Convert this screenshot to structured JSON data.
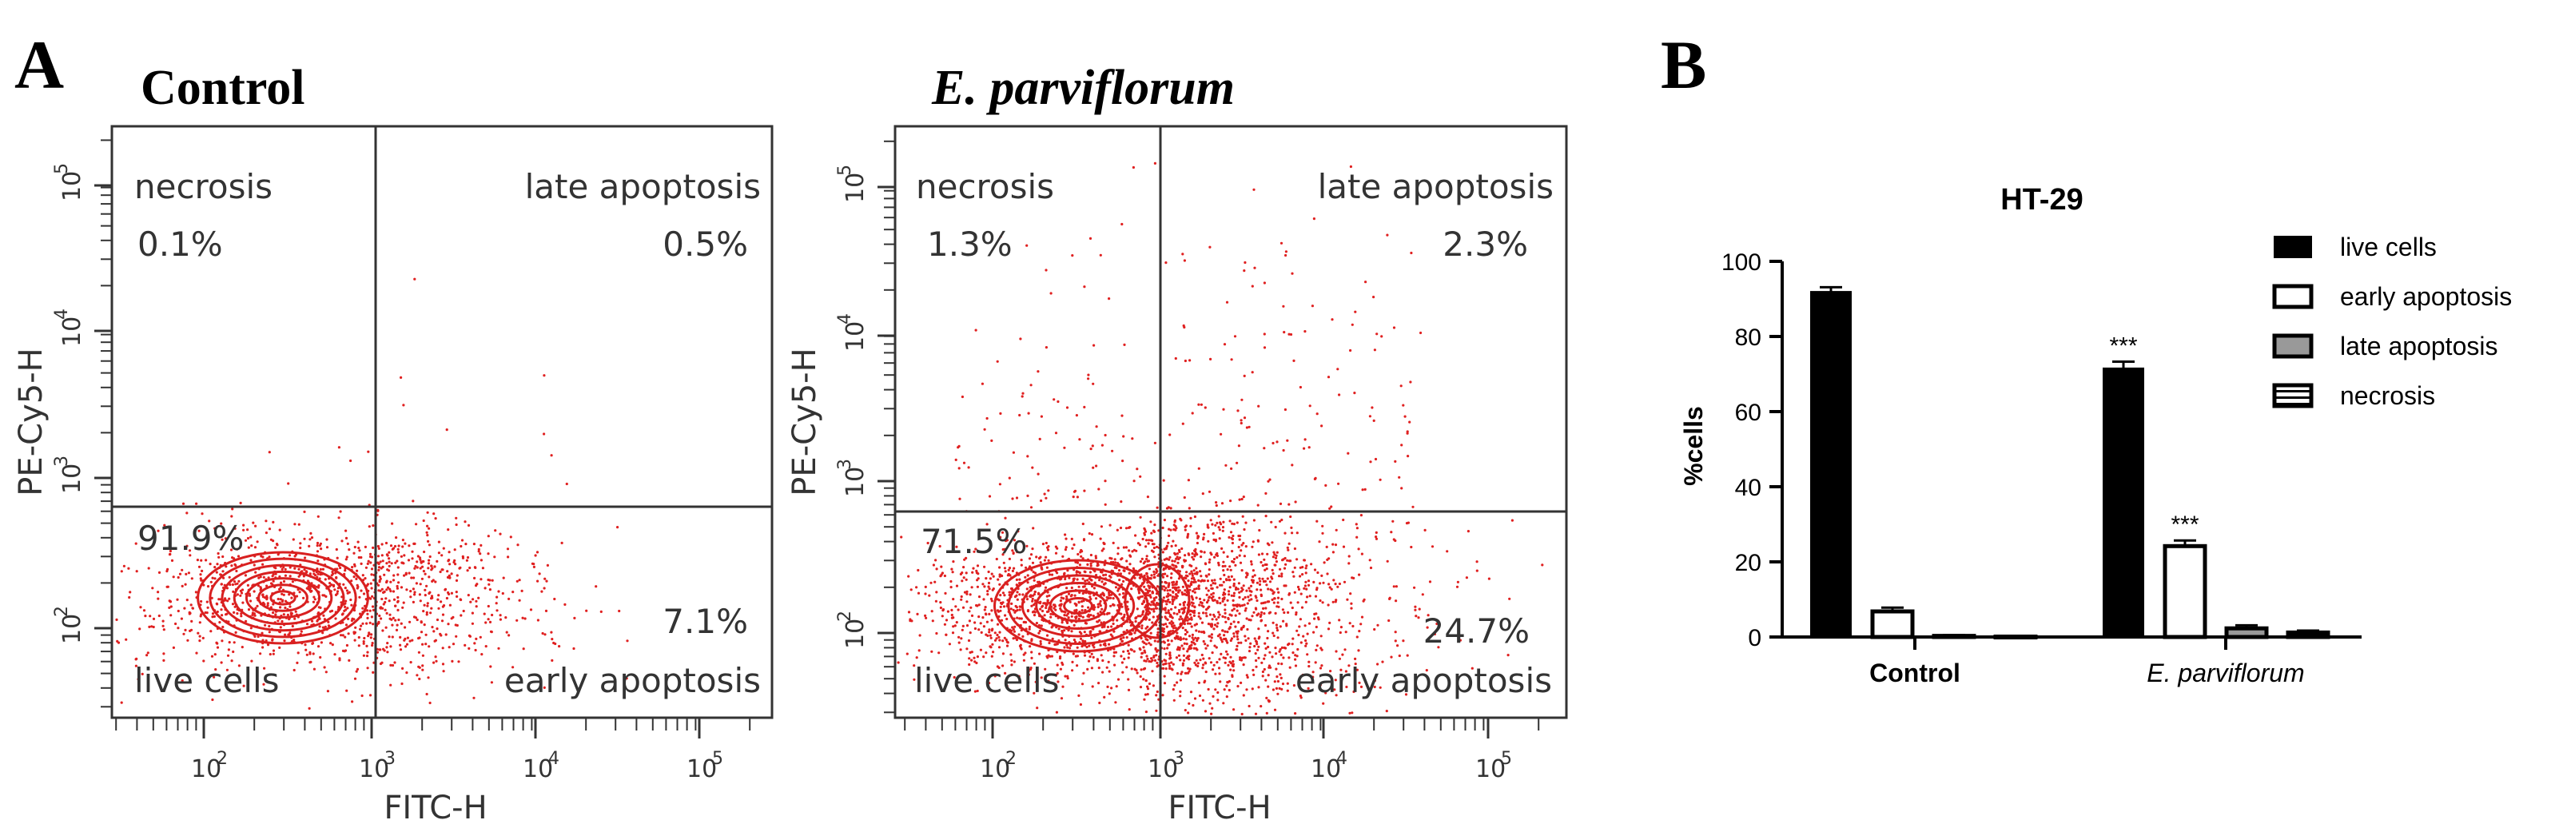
{
  "figure": {
    "panel_a_label": "A",
    "panel_b_label": "B"
  },
  "chart_data": [
    {
      "type": "scatter",
      "title": "Control",
      "xlabel": "FITC-H",
      "ylabel": "PE-Cy5-H",
      "xscale": "log",
      "yscale": "log",
      "x_tick_base": "10",
      "x_tick_exponents": [
        "2",
        "3",
        "4",
        "5"
      ],
      "y_tick_base": "10",
      "y_tick_exponents": [
        "2",
        "3",
        "4",
        "5"
      ],
      "gate_x": 1000,
      "gate_y": 600,
      "quadrants": [
        {
          "name": "necrosis",
          "percent": "0.1%"
        },
        {
          "name": "late apoptosis",
          "percent": "0.5%"
        },
        {
          "name": "live cells",
          "percent": "91.9%"
        },
        {
          "name": "early apoptosis",
          "percent": "7.1%"
        }
      ]
    },
    {
      "type": "scatter",
      "title": "E. parviflorum",
      "xlabel": "FITC-H",
      "ylabel": "PE-Cy5-H",
      "xscale": "log",
      "yscale": "log",
      "x_tick_base": "10",
      "x_tick_exponents": [
        "2",
        "3",
        "4",
        "5"
      ],
      "y_tick_base": "10",
      "y_tick_exponents": [
        "2",
        "3",
        "4",
        "5"
      ],
      "gate_x": 1000,
      "gate_y": 600,
      "quadrants": [
        {
          "name": "necrosis",
          "percent": "1.3%"
        },
        {
          "name": "late apoptosis",
          "percent": "2.3%"
        },
        {
          "name": "live cells",
          "percent": "71.5%"
        },
        {
          "name": "early apoptosis",
          "percent": "24.7%"
        }
      ]
    },
    {
      "type": "bar",
      "title": "HT-29",
      "ylabel": "%cells",
      "ylim": [
        0,
        100
      ],
      "yticks": [
        "0",
        "20",
        "40",
        "60",
        "80",
        "100"
      ],
      "categories": [
        "Control",
        "E. parviflorum"
      ],
      "series": [
        {
          "name": "live cells",
          "values": [
            91.9,
            71.5
          ],
          "errors": [
            1.2,
            1.8
          ],
          "sig": [
            "",
            "***"
          ],
          "fill": "#000000",
          "pattern": "solid"
        },
        {
          "name": "early apoptosis",
          "values": [
            6.8,
            24.2
          ],
          "errors": [
            1.0,
            1.5
          ],
          "sig": [
            "",
            "***"
          ],
          "fill": "#ffffff",
          "pattern": "open"
        },
        {
          "name": "late apoptosis",
          "values": [
            0.3,
            2.3
          ],
          "errors": [
            0.2,
            0.8
          ],
          "sig": [
            "",
            ""
          ],
          "fill": "#999999",
          "pattern": "grey"
        },
        {
          "name": "necrosis",
          "values": [
            0.1,
            1.2
          ],
          "errors": [
            0.1,
            0.5
          ],
          "sig": [
            "",
            ""
          ],
          "fill": "#ffffff",
          "pattern": "striped"
        }
      ]
    }
  ]
}
